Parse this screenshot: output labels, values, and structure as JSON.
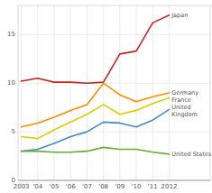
{
  "chart_data": {
    "type": "line",
    "x": [
      2003,
      2004,
      2005,
      2006,
      2007,
      2008,
      2009,
      2010,
      2011,
      2012
    ],
    "series": [
      {
        "name": "Japan",
        "color": "#cc2222",
        "values": [
          10.2,
          10.5,
          10.1,
          10.1,
          10.0,
          10.1,
          13.0,
          13.3,
          16.2,
          17.0
        ]
      },
      {
        "name": "Germany",
        "color": "#ff8c00",
        "values": [
          5.5,
          5.9,
          6.5,
          7.2,
          7.8,
          10.0,
          8.8,
          8.1,
          8.6,
          9.0
        ]
      },
      {
        "name": "France",
        "color": "#ddcc00",
        "values": [
          4.5,
          4.3,
          5.2,
          6.0,
          6.8,
          7.8,
          6.8,
          7.2,
          7.9,
          8.5
        ]
      },
      {
        "name": "United\nKingdom",
        "color": "#4488cc",
        "values": [
          3.0,
          3.2,
          3.8,
          4.5,
          5.0,
          6.0,
          5.9,
          5.5,
          6.2,
          7.3
        ]
      },
      {
        "name": "United States",
        "color": "#66aa33",
        "values": [
          3.0,
          3.0,
          2.9,
          2.9,
          3.0,
          3.4,
          3.2,
          3.2,
          2.9,
          2.7
        ]
      }
    ],
    "xlim": [
      2002.8,
      2014.5
    ],
    "xticks": [
      2003,
      {
        "value": 2004,
        "label": "'04"
      },
      {
        "value": 2005,
        "label": "'05"
      },
      {
        "value": 2006,
        "label": "'06"
      },
      {
        "value": 2007,
        "label": "'07"
      },
      {
        "value": 2008,
        "label": "'08"
      },
      {
        "value": 2009,
        "label": "'09"
      },
      {
        "value": 2010,
        "label": "'10"
      },
      {
        "value": 2011,
        "label": "'11"
      },
      2012
    ],
    "ylim": [
      0,
      18.0
    ],
    "yticks": [
      0,
      5,
      10,
      15
    ],
    "grid": true
  }
}
